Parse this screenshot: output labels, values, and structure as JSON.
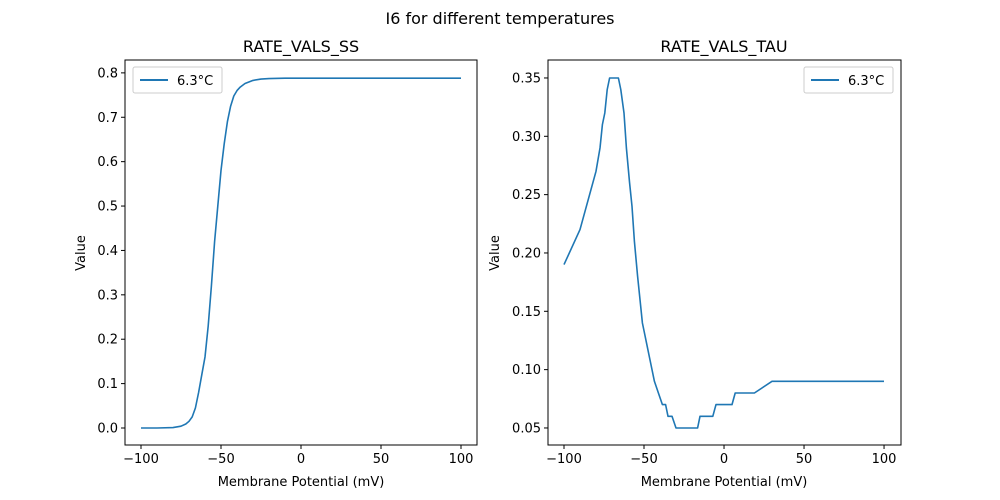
{
  "figure_title": "I6 for different temperatures",
  "line_color": "#1f77b4",
  "chart_data": [
    {
      "type": "line",
      "title": "RATE_VALS_SS",
      "xlabel": "Membrane Potential (mV)",
      "ylabel": "Value",
      "xlim": [
        -110,
        110
      ],
      "ylim": [
        -0.0383,
        0.829
      ],
      "xticks": [
        -100,
        -50,
        0,
        50,
        100
      ],
      "xtick_labels": [
        "−100",
        "−50",
        "0",
        "50",
        "100"
      ],
      "yticks": [
        0.0,
        0.1,
        0.2,
        0.3,
        0.4,
        0.5,
        0.6,
        0.7,
        0.8
      ],
      "ytick_labels": [
        "0.0",
        "0.1",
        "0.2",
        "0.3",
        "0.4",
        "0.5",
        "0.6",
        "0.7",
        "0.8"
      ],
      "legend_position": "upper-left",
      "grid": false,
      "series": [
        {
          "name": "6.3°C",
          "x": [
            -100,
            -90,
            -80,
            -75,
            -72,
            -70,
            -68,
            -66,
            -64,
            -62,
            -60,
            -58,
            -56,
            -54,
            -52,
            -50,
            -48,
            -46,
            -44,
            -42,
            -40,
            -38,
            -35,
            -30,
            -25,
            -20,
            -10,
            0,
            25,
            50,
            75,
            100
          ],
          "y": [
            0.0,
            0.0,
            0.001,
            0.004,
            0.009,
            0.015,
            0.025,
            0.045,
            0.08,
            0.12,
            0.16,
            0.23,
            0.32,
            0.42,
            0.5,
            0.58,
            0.64,
            0.69,
            0.725,
            0.748,
            0.76,
            0.768,
            0.776,
            0.783,
            0.786,
            0.787,
            0.788,
            0.788,
            0.788,
            0.788,
            0.788,
            0.788
          ]
        }
      ]
    },
    {
      "type": "line",
      "title": "RATE_VALS_TAU",
      "xlabel": "Membrane Potential (mV)",
      "ylabel": "Value",
      "xlim": [
        -110,
        110.6
      ],
      "ylim": [
        0.0354,
        0.3654
      ],
      "xticks": [
        -100,
        -50,
        0,
        50,
        100
      ],
      "xtick_labels": [
        "−100",
        "−50",
        "0",
        "50",
        "100"
      ],
      "yticks": [
        0.05,
        0.1,
        0.15,
        0.2,
        0.25,
        0.3,
        0.35
      ],
      "ytick_labels": [
        "0.05",
        "0.10",
        "0.15",
        "0.20",
        "0.25",
        "0.30",
        "0.35"
      ],
      "legend_position": "upper-right",
      "grid": false,
      "series": [
        {
          "name": "6.3°C",
          "x": [
            -100,
            -90,
            -80,
            -77.5,
            -76,
            -74.5,
            -73,
            -71.5,
            -70,
            -69,
            -66,
            -64.5,
            -62.5,
            -61,
            -59,
            -57.5,
            -56,
            -54,
            -52.5,
            -51,
            -49.5,
            -48,
            -46.5,
            -45,
            -43.5,
            -41,
            -38.5,
            -36.5,
            -35,
            -32.5,
            -30,
            -27.5,
            -25.5,
            -16.5,
            -15,
            -7,
            -5,
            5,
            7,
            19,
            30,
            100
          ],
          "y": [
            0.19,
            0.22,
            0.27,
            0.29,
            0.31,
            0.32,
            0.34,
            0.35,
            0.35,
            0.35,
            0.35,
            0.34,
            0.32,
            0.29,
            0.26,
            0.24,
            0.21,
            0.18,
            0.16,
            0.14,
            0.13,
            0.12,
            0.11,
            0.1,
            0.09,
            0.08,
            0.07,
            0.07,
            0.06,
            0.06,
            0.05,
            0.05,
            0.05,
            0.05,
            0.06,
            0.06,
            0.07,
            0.07,
            0.08,
            0.08,
            0.09,
            0.09
          ]
        }
      ]
    }
  ]
}
